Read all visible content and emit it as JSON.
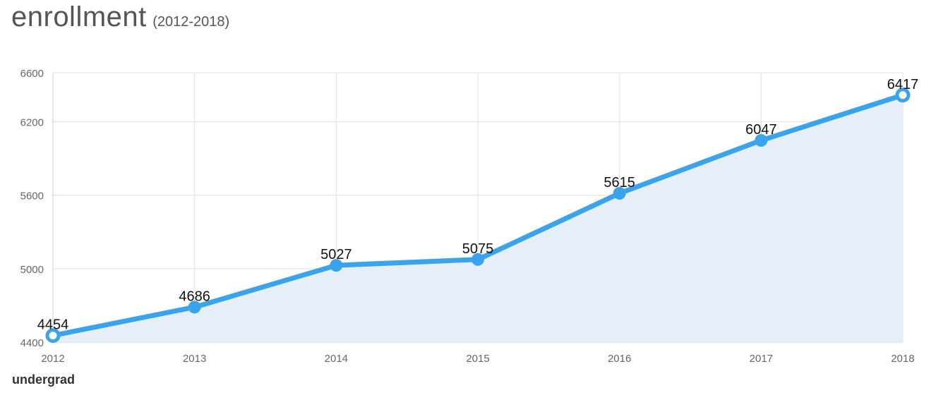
{
  "header": {
    "title": "enrollment",
    "subtitle": "(2012-2018)"
  },
  "series_label": "undergrad",
  "colors": {
    "line": "#3ba3ec",
    "area": "#e6eef7",
    "grid": "#e0e0e0",
    "axis": "#cccccc",
    "tick_text": "#666666",
    "value_text": "#111111"
  },
  "chart_data": {
    "type": "area",
    "title": "enrollment",
    "subtitle": "(2012-2018)",
    "xlabel": "",
    "ylabel": "",
    "categories": [
      "2012",
      "2013",
      "2014",
      "2015",
      "2016",
      "2017",
      "2018"
    ],
    "x_tick_labels": [
      "2012",
      "2013",
      "2014",
      "2015",
      "2016",
      "2017",
      "2018"
    ],
    "series": [
      {
        "name": "undergrad",
        "values": [
          4454,
          4686,
          5027,
          5075,
          5615,
          6047,
          6417
        ]
      }
    ],
    "y_ticks": [
      4400,
      5000,
      5600,
      6200,
      6600
    ],
    "y_tick_labels": [
      "4400",
      "5000",
      "5600",
      "6200",
      "6600"
    ],
    "ylim": [
      4400,
      6600
    ],
    "grid": true,
    "data_labels": true
  }
}
